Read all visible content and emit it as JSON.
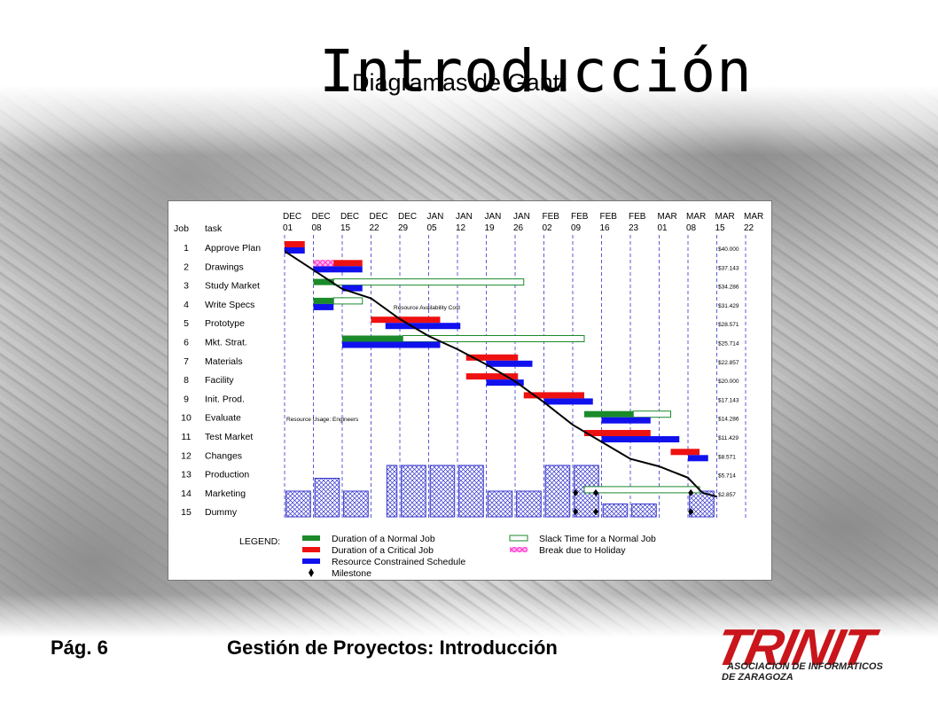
{
  "slide": {
    "title": "Introducción",
    "subtitle": "Diagramas de Gantt",
    "footer_page": "Pág. 6",
    "footer_title": "Gestión de Proyectos: Introducción",
    "logo_word": "TRINIT",
    "logo_line1": "ASOCIACION DE INFORMATICOS",
    "logo_line2": "DE ZARAGOZA"
  },
  "chart_data": {
    "type": "gantt",
    "column_headers": [
      "Job",
      "task"
    ],
    "dates": [
      [
        "DEC",
        "01"
      ],
      [
        "DEC",
        "08"
      ],
      [
        "DEC",
        "15"
      ],
      [
        "DEC",
        "22"
      ],
      [
        "DEC",
        "29"
      ],
      [
        "JAN",
        "05"
      ],
      [
        "JAN",
        "12"
      ],
      [
        "JAN",
        "19"
      ],
      [
        "JAN",
        "26"
      ],
      [
        "FEB",
        "02"
      ],
      [
        "FEB",
        "09"
      ],
      [
        "FEB",
        "16"
      ],
      [
        "FEB",
        "23"
      ],
      [
        "MAR",
        "01"
      ],
      [
        "MAR",
        "08"
      ],
      [
        "MAR",
        "15"
      ],
      [
        "MAR",
        "22"
      ]
    ],
    "jobs": [
      {
        "id": "1",
        "task": "Approve Plan",
        "cost": "$40.000",
        "bars": [
          {
            "kind": "critical",
            "start": 0,
            "end": 0.7
          },
          {
            "kind": "resource",
            "start": 0,
            "end": 0.7
          }
        ]
      },
      {
        "id": "2",
        "task": "Drawings",
        "cost": "$37.143",
        "bars": [
          {
            "kind": "critical",
            "start": 1,
            "end": 2.7
          },
          {
            "kind": "resource",
            "start": 1,
            "end": 2.7
          },
          {
            "kind": "holiday",
            "start": 1,
            "end": 1.7
          }
        ]
      },
      {
        "id": "3",
        "task": "Study Market",
        "cost": "$34.286",
        "bars": [
          {
            "kind": "normal",
            "start": 1,
            "end": 1.7
          },
          {
            "kind": "slack",
            "start": 1.7,
            "end": 8.3
          },
          {
            "kind": "resource",
            "start": 2,
            "end": 2.7
          }
        ]
      },
      {
        "id": "4",
        "task": "Write Specs",
        "cost": "$31.429",
        "bars": [
          {
            "kind": "normal",
            "start": 1,
            "end": 1.7
          },
          {
            "kind": "slack",
            "start": 1.7,
            "end": 2.7
          },
          {
            "kind": "resource",
            "start": 1,
            "end": 1.7
          }
        ]
      },
      {
        "id": "5",
        "task": "Prototype",
        "cost": "$28.571",
        "bars": [
          {
            "kind": "critical",
            "start": 3,
            "end": 5.4
          },
          {
            "kind": "resource",
            "start": 3.5,
            "end": 6.1
          }
        ]
      },
      {
        "id": "6",
        "task": "Mkt. Strat.",
        "cost": "$25.714",
        "bars": [
          {
            "kind": "normal",
            "start": 2,
            "end": 4.1
          },
          {
            "kind": "slack",
            "start": 4.1,
            "end": 10.4
          },
          {
            "kind": "resource",
            "start": 2,
            "end": 5.4
          }
        ]
      },
      {
        "id": "7",
        "task": "Materials",
        "cost": "$22.857",
        "bars": [
          {
            "kind": "critical",
            "start": 6.3,
            "end": 8.1
          },
          {
            "kind": "resource",
            "start": 7,
            "end": 8.6
          }
        ]
      },
      {
        "id": "8",
        "task": "Facility",
        "cost": "$20.000",
        "bars": [
          {
            "kind": "critical",
            "start": 6.3,
            "end": 8.1
          },
          {
            "kind": "resource",
            "start": 7,
            "end": 8.3
          }
        ]
      },
      {
        "id": "9",
        "task": "Init. Prod.",
        "cost": "$17.143",
        "bars": [
          {
            "kind": "critical",
            "start": 8.3,
            "end": 10.4
          },
          {
            "kind": "resource",
            "start": 9,
            "end": 10.7
          }
        ]
      },
      {
        "id": "10",
        "task": "Evaluate",
        "cost": "$14.286",
        "bars": [
          {
            "kind": "normal",
            "start": 10.4,
            "end": 12.1
          },
          {
            "kind": "slack",
            "start": 12.1,
            "end": 13.4
          },
          {
            "kind": "resource",
            "start": 11,
            "end": 12.7
          }
        ]
      },
      {
        "id": "11",
        "task": "Test Market",
        "cost": "$11.429",
        "bars": [
          {
            "kind": "critical",
            "start": 10.4,
            "end": 12.7
          },
          {
            "kind": "resource",
            "start": 11,
            "end": 13.7
          }
        ]
      },
      {
        "id": "12",
        "task": "Changes",
        "cost": "$8.571",
        "bars": [
          {
            "kind": "critical",
            "start": 13.4,
            "end": 14.4
          },
          {
            "kind": "resource",
            "start": 14,
            "end": 14.7
          }
        ]
      },
      {
        "id": "13",
        "task": "Production",
        "cost": "$5.714",
        "bars": []
      },
      {
        "id": "14",
        "task": "Marketing",
        "cost": "$2.857",
        "bars": [
          {
            "kind": "slack",
            "start": 10.4,
            "end": 14.4
          }
        ]
      },
      {
        "id": "15",
        "task": "Dummy",
        "cost": "",
        "bars": []
      }
    ],
    "milestones": [
      [
        10.1,
        13
      ],
      [
        10.1,
        14
      ],
      [
        10.8,
        13
      ],
      [
        10.8,
        14
      ],
      [
        14.1,
        13
      ],
      [
        14.1,
        14
      ]
    ],
    "resource_availability_label": "Resource Availability Cost",
    "resource_usage_label": "Resource Usage: Engineers",
    "usage_histogram": [
      {
        "start": 0.05,
        "end": 0.9,
        "level": 2
      },
      {
        "start": 1.05,
        "end": 1.9,
        "level": 3
      },
      {
        "start": 2.05,
        "end": 2.9,
        "level": 2
      },
      {
        "start": 3.55,
        "end": 3.9,
        "level": 4
      },
      {
        "start": 4.05,
        "end": 4.9,
        "level": 4
      },
      {
        "start": 5.05,
        "end": 5.9,
        "level": 4
      },
      {
        "start": 6.05,
        "end": 6.9,
        "level": 4
      },
      {
        "start": 7.05,
        "end": 7.9,
        "level": 2
      },
      {
        "start": 8.05,
        "end": 8.9,
        "level": 2
      },
      {
        "start": 9.05,
        "end": 9.9,
        "level": 4
      },
      {
        "start": 10.05,
        "end": 10.9,
        "level": 4
      },
      {
        "start": 11.05,
        "end": 11.9,
        "level": 1
      },
      {
        "start": 12.05,
        "end": 12.9,
        "level": 1
      },
      {
        "start": 14.05,
        "end": 14.9,
        "level": 2
      }
    ],
    "cost_curve": [
      [
        0,
        0.2
      ],
      [
        1,
        1.2
      ],
      [
        2,
        2.2
      ],
      [
        3,
        2.7
      ],
      [
        4,
        3.8
      ],
      [
        5,
        4.7
      ],
      [
        6,
        5.4
      ],
      [
        7,
        6.2
      ],
      [
        8,
        7.1
      ],
      [
        9,
        8.2
      ],
      [
        10,
        9.4
      ],
      [
        11,
        10.3
      ],
      [
        12,
        11.2
      ],
      [
        13,
        11.6
      ],
      [
        14,
        12.2
      ],
      [
        14.5,
        13.0
      ],
      [
        15,
        13.2
      ]
    ],
    "legend": [
      {
        "kind": "normal",
        "label": "Duration of a Normal Job"
      },
      {
        "kind": "critical",
        "label": "Duration of a Critical Job"
      },
      {
        "kind": "resource",
        "label": "Resource Constrained Schedule"
      },
      {
        "kind": "milestone",
        "label": "Milestone"
      },
      {
        "kind": "slack",
        "label": "Slack Time for a Normal Job"
      },
      {
        "kind": "holiday",
        "label": "Break due to Holiday"
      }
    ],
    "legend_title": "LEGEND:",
    "colors": {
      "normal": "#1a8a2a",
      "critical": "#ee1111",
      "resource": "#1111ee",
      "slack": "#1a8a2a",
      "holiday": "#ff33cc",
      "grid": "#3333cc",
      "curve": "#000000"
    }
  }
}
